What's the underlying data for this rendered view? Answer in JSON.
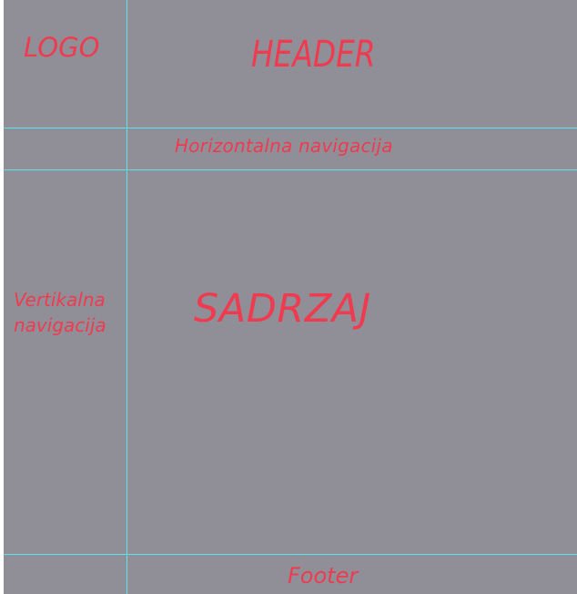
{
  "layout_labels": {
    "logo": "LOGO",
    "header": "HEADER",
    "horizontal_nav": "Horizontalna navigacija",
    "vertical_nav_line1": "Vertikalna",
    "vertical_nav_line2": "navigacija",
    "content": "SADRZAJ",
    "footer": "Footer"
  },
  "colors": {
    "background": "#908f97",
    "guides": "#5de3ea",
    "text": "#ef3a4f"
  }
}
